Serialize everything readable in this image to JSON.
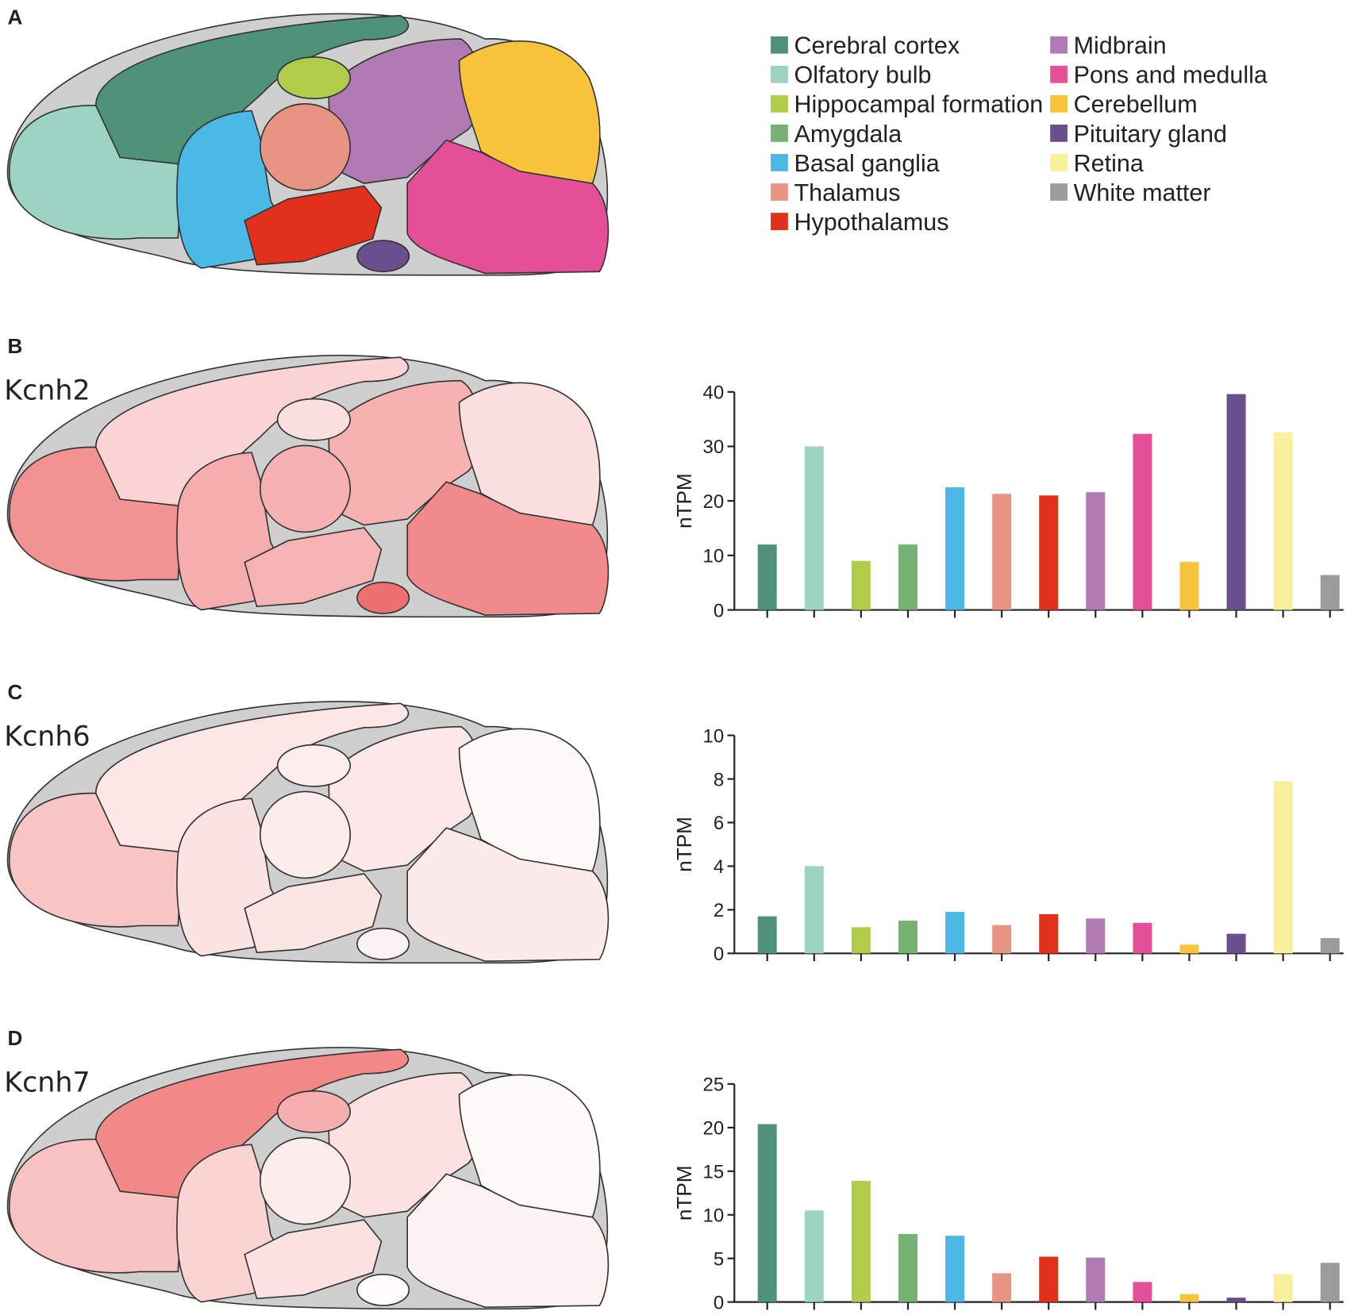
{
  "panel_labels": [
    "A",
    "B",
    "C",
    "D"
  ],
  "legend": {
    "items": [
      {
        "name": "Cerebral cortex",
        "color": "#4f9278"
      },
      {
        "name": "Olfatory bulb",
        "color": "#9dd3c3"
      },
      {
        "name": "Hippocampal formation",
        "color": "#b0cc4a"
      },
      {
        "name": "Amygdala",
        "color": "#77b275"
      },
      {
        "name": "Basal ganglia",
        "color": "#4cb8e6"
      },
      {
        "name": "Thalamus",
        "color": "#e89483"
      },
      {
        "name": "Hypothalamus",
        "color": "#e1311d"
      },
      {
        "name": "Midbrain",
        "color": "#b27ab3"
      },
      {
        "name": "Pons and medulla",
        "color": "#e44f97"
      },
      {
        "name": "Cerebellum",
        "color": "#f8c43b"
      },
      {
        "name": "Pituitary gland",
        "color": "#6a4f8e"
      },
      {
        "name": "Retina",
        "color": "#f8f09a"
      },
      {
        "name": "White matter",
        "color": "#9b9b9b"
      }
    ]
  },
  "chart_data": [
    {
      "type": "bar",
      "title": "Kcnh2",
      "ylabel": "nTPM",
      "categories": [
        null,
        null,
        null,
        null,
        null,
        null,
        null,
        null,
        null,
        null,
        null,
        null,
        null
      ],
      "values": [
        12,
        30,
        9,
        12,
        22.5,
        21.3,
        21,
        21.6,
        32.3,
        8.8,
        39.6,
        32.6,
        6.4
      ],
      "ylim": [
        0,
        40
      ],
      "yticks": [
        0,
        10,
        20,
        30,
        40
      ]
    },
    {
      "type": "bar",
      "title": "Kcnh6",
      "ylabel": "nTPM",
      "categories": [
        null,
        null,
        null,
        null,
        null,
        null,
        null,
        null,
        null,
        null,
        null,
        null,
        null
      ],
      "values": [
        1.7,
        4.0,
        1.2,
        1.5,
        1.9,
        1.3,
        1.8,
        1.6,
        1.4,
        0.4,
        0.9,
        7.9,
        0.7
      ],
      "ylim": [
        0,
        10
      ],
      "yticks": [
        0,
        2,
        4,
        6,
        8,
        10
      ]
    },
    {
      "type": "bar",
      "title": "Kcnh7",
      "ylabel": "nTPM",
      "categories": [
        null,
        null,
        null,
        null,
        null,
        null,
        null,
        null,
        null,
        null,
        null,
        null,
        null
      ],
      "values": [
        20.4,
        10.5,
        13.9,
        7.8,
        7.6,
        3.3,
        5.2,
        5.1,
        2.3,
        0.9,
        0.5,
        3.2,
        4.5
      ],
      "ylim": [
        0,
        25
      ],
      "yticks": [
        0,
        5,
        10,
        15,
        20,
        25
      ]
    }
  ]
}
